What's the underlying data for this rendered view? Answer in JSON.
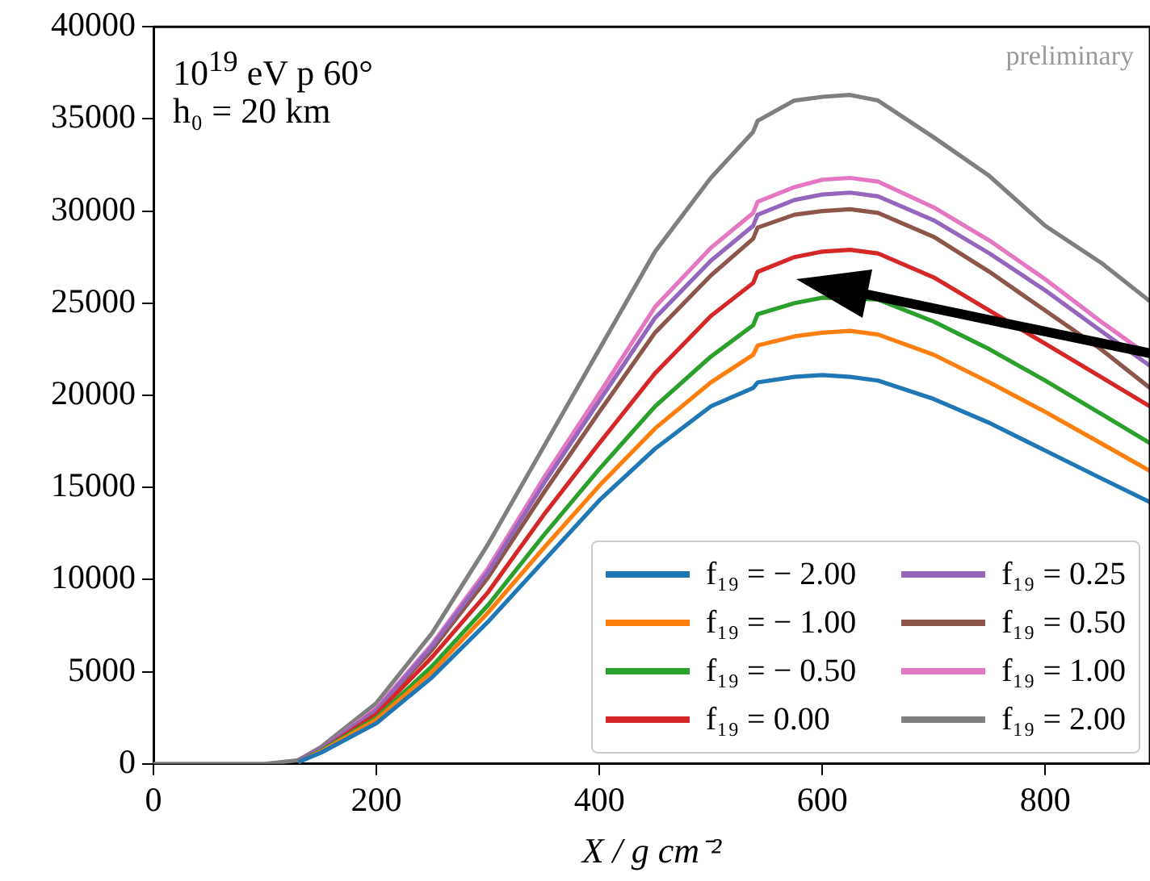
{
  "chart_data": {
    "type": "line",
    "xlabel": "X / g cm⁻²",
    "annotations": [
      "10$^{19}$ eV p 60°",
      "h₀ = 20 km",
      "preliminary"
    ],
    "x": [
      0,
      100,
      130,
      150,
      200,
      250,
      300,
      350,
      400,
      450,
      500,
      538,
      542,
      575,
      600,
      625,
      650,
      700,
      750,
      800,
      850,
      894
    ],
    "series": [
      {
        "name": "f₁₉ = − 2.00",
        "color": "#1f77b4",
        "values": [
          null,
          null,
          100,
          600,
          2200,
          4700,
          7700,
          11000,
          14300,
          17100,
          19400,
          20400,
          20700,
          21000,
          21100,
          21000,
          20800,
          19800,
          18500,
          17000,
          15500,
          14200
        ]
      },
      {
        "name": "f₁₉ = − 1.00",
        "color": "#ff7f0e",
        "values": [
          null,
          null,
          100,
          650,
          2400,
          5000,
          8200,
          11700,
          15100,
          18200,
          20700,
          22200,
          22700,
          23200,
          23400,
          23500,
          23300,
          22200,
          20700,
          19100,
          17400,
          15900
        ]
      },
      {
        "name": "f₁₉ = − 0.50",
        "color": "#2ca02c",
        "values": [
          null,
          null,
          100,
          700,
          2500,
          5300,
          8600,
          12400,
          16000,
          19400,
          22100,
          23800,
          24400,
          25000,
          25300,
          null,
          25200,
          24000,
          22500,
          20800,
          19000,
          17400
        ]
      },
      {
        "name": "f₁₉ = 0.00",
        "color": "#d62728",
        "values": [
          null,
          null,
          100,
          700,
          2700,
          5800,
          9300,
          13500,
          17400,
          21200,
          24300,
          26100,
          26700,
          27500,
          27800,
          27900,
          27700,
          26400,
          24600,
          22800,
          21000,
          19400
        ]
      },
      {
        "name": "f₁₉ = 0.25",
        "color": "#9467bd",
        "values": [
          null,
          null,
          200,
          800,
          2900,
          6400,
          10400,
          15200,
          19700,
          24200,
          27300,
          29200,
          29800,
          30600,
          30900,
          31000,
          30800,
          29500,
          27700,
          25700,
          23500,
          21600
        ]
      },
      {
        "name": "f₁₉ = 0.50",
        "color": "#8c564b",
        "values": [
          null,
          null,
          200,
          800,
          2900,
          6200,
          10100,
          14700,
          19100,
          23400,
          26500,
          28500,
          29100,
          29800,
          30000,
          30100,
          29900,
          28600,
          26700,
          24600,
          22500,
          20400
        ]
      },
      {
        "name": "f₁₉ = 1.00",
        "color": "#e377c2",
        "values": [
          null,
          null,
          200,
          800,
          3000,
          6500,
          10600,
          15500,
          20100,
          24800,
          28000,
          29900,
          30500,
          31300,
          31700,
          31800,
          31600,
          30200,
          28400,
          26300,
          24000,
          22100
        ]
      },
      {
        "name": "f₁₉ = 2.00",
        "color": "#7f7f7f",
        "values": [
          0,
          0,
          200,
          900,
          3300,
          7100,
          11900,
          17200,
          22500,
          27800,
          31800,
          34300,
          34900,
          36000,
          36200,
          36300,
          36000,
          34000,
          31900,
          29200,
          27200,
          25100
        ]
      }
    ],
    "xlim": [
      0,
      894
    ],
    "xticks": [
      0,
      200,
      400,
      600,
      800
    ],
    "ylim": [
      0,
      40000
    ],
    "yticks": [
      0,
      5000,
      10000,
      15000,
      20000,
      25000,
      30000,
      35000,
      40000
    ],
    "grid": false,
    "legend": "bottom right",
    "marker": "none",
    "line_style": "solid"
  }
}
